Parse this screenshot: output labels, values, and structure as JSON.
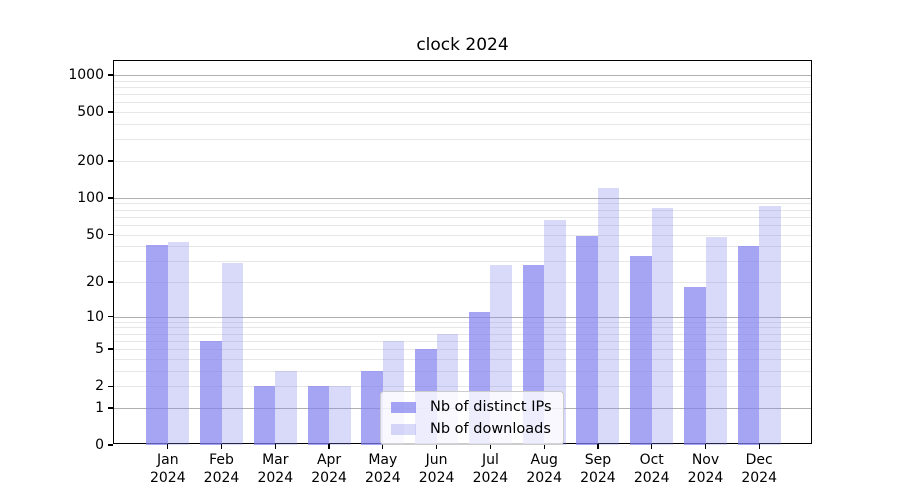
{
  "chart_data": {
    "type": "bar",
    "title": "clock 2024",
    "categories": [
      "Jan",
      "Feb",
      "Mar",
      "Apr",
      "May",
      "Jun",
      "Jul",
      "Aug",
      "Sep",
      "Oct",
      "Nov",
      "Dec"
    ],
    "category_year": "2024",
    "series": [
      {
        "name": "Nb of distinct IPs",
        "color": "rgba(130,130,240,0.72)",
        "values": [
          41,
          6,
          2,
          2,
          3,
          5,
          11,
          28,
          49,
          33,
          18,
          40
        ]
      },
      {
        "name": "Nb of downloads",
        "color": "rgba(130,130,240,0.30)",
        "values": [
          43,
          29,
          3,
          2,
          6,
          7,
          28,
          66,
          120,
          82,
          48,
          86
        ]
      }
    ],
    "xlabel": "",
    "ylabel": "",
    "yscale": "log1p",
    "ylim": [
      0,
      1300
    ],
    "yticks": [
      0,
      1,
      2,
      5,
      10,
      20,
      50,
      100,
      200,
      500,
      1000
    ],
    "major_gridlines": [
      1,
      10,
      100,
      1000
    ],
    "grid": "on",
    "legend_position": "lower-center",
    "colors": {
      "axis": "#000000",
      "major_grid": "#b0b0b0",
      "minor_grid": "#e7e7e7",
      "bar_base": "#8282f0"
    }
  }
}
